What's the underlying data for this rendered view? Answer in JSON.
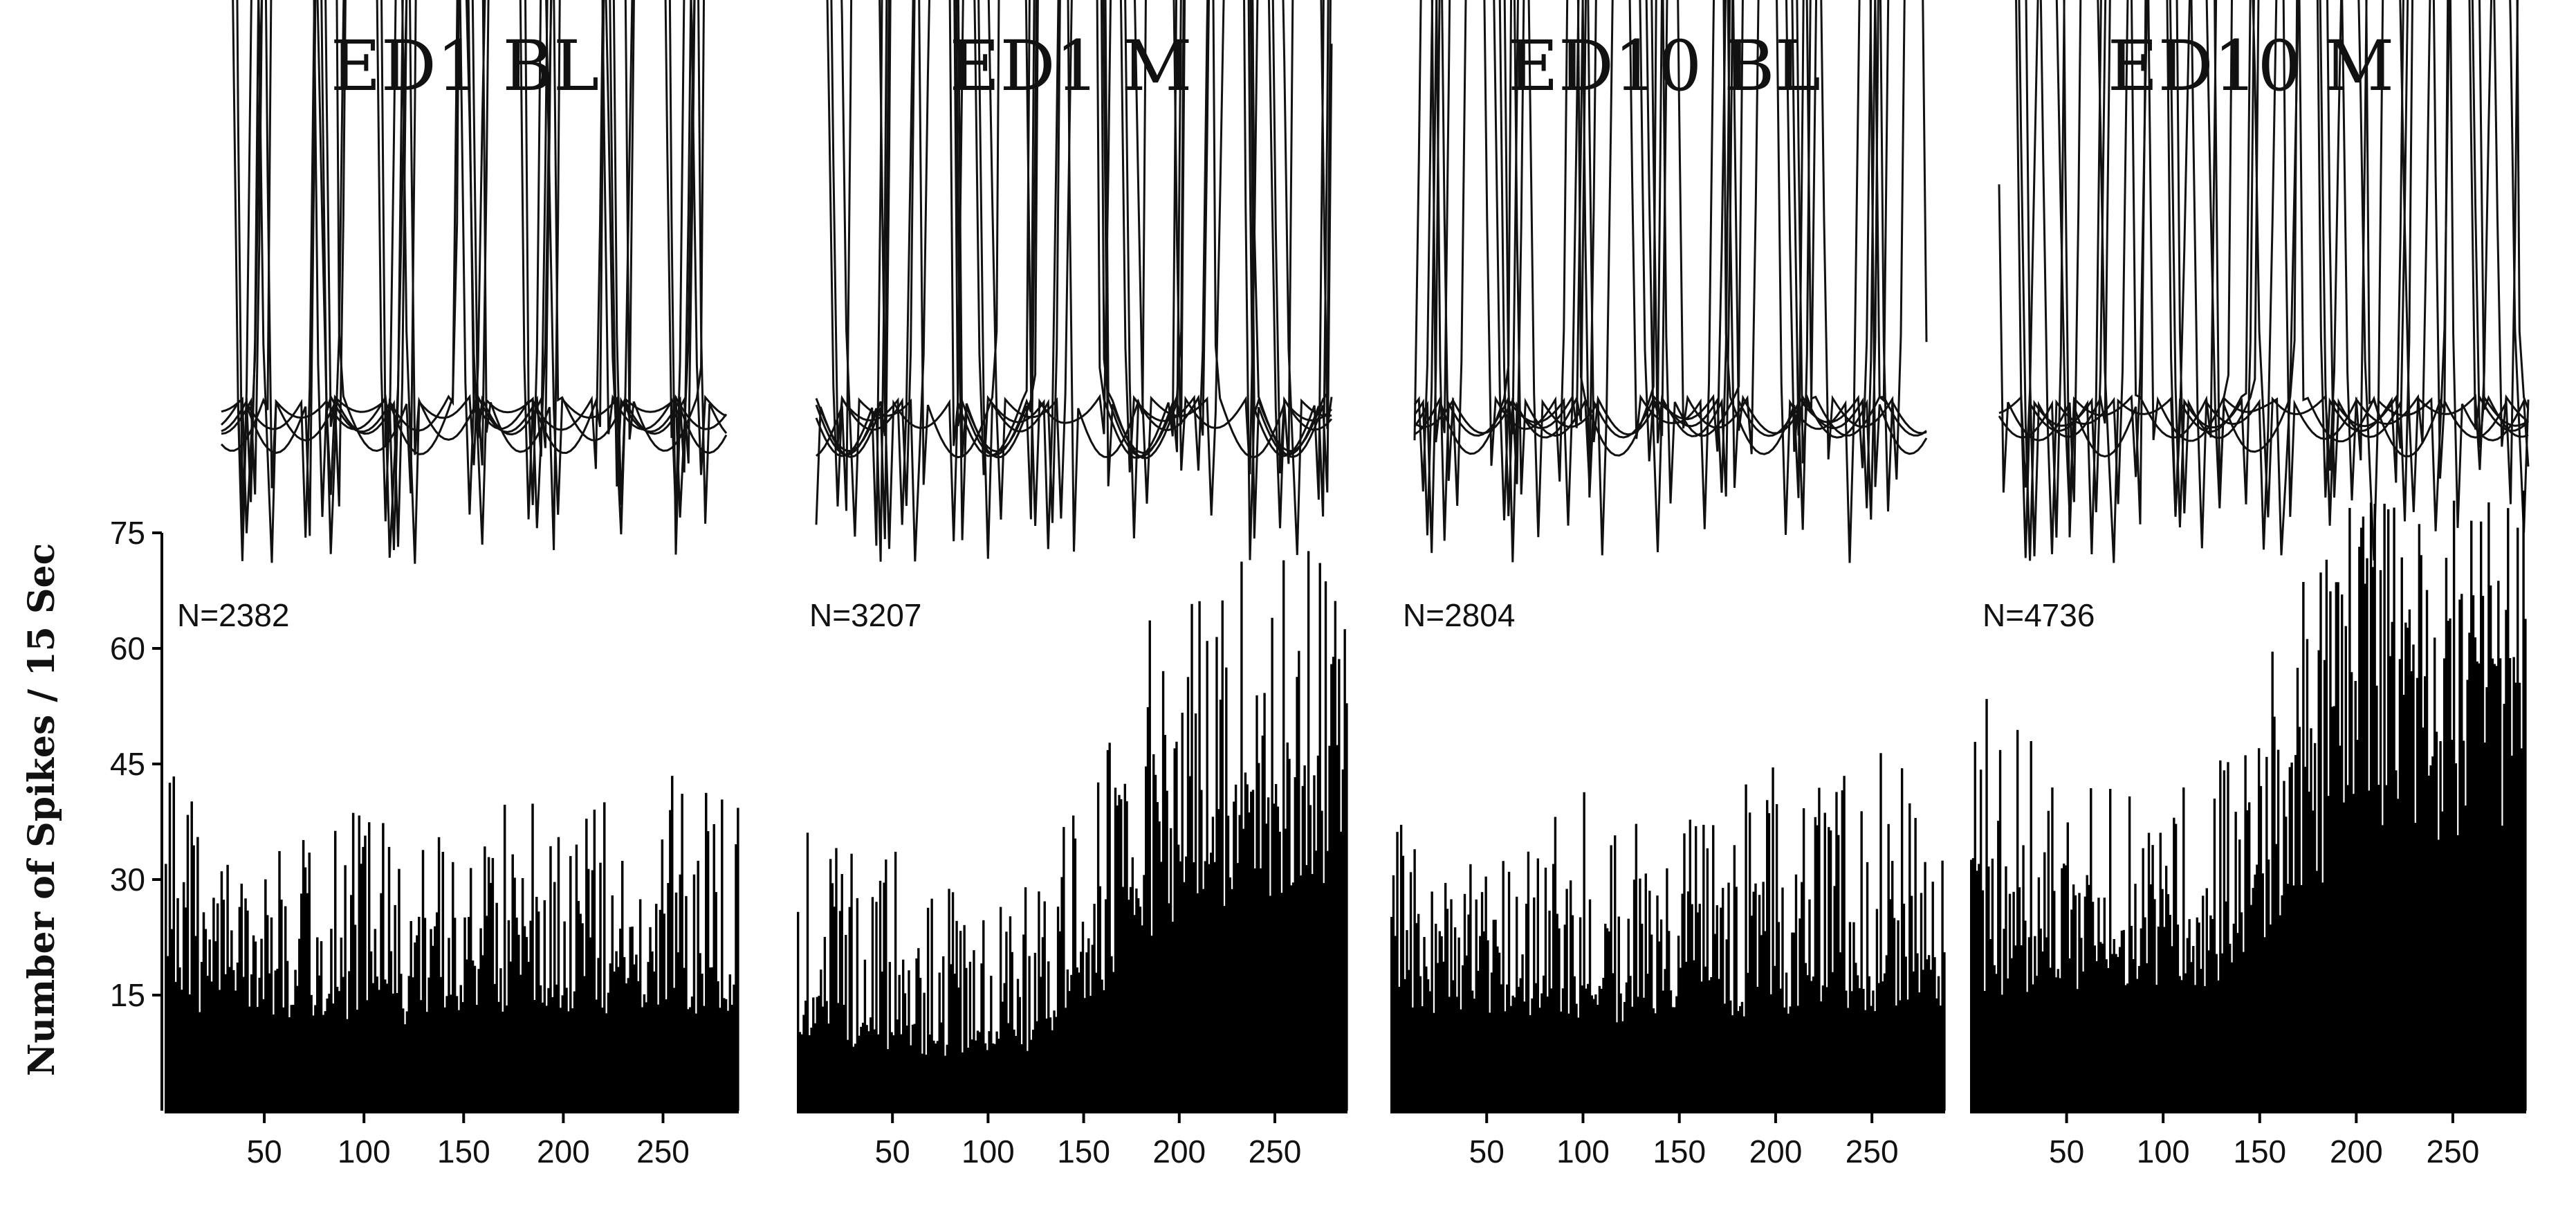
{
  "chart_data": {
    "type": "bar",
    "ylabel": "Number of Spikes / 15 Sec",
    "ylim": [
      0,
      75
    ],
    "yticks": [
      15,
      30,
      45,
      60,
      75
    ],
    "xlim": [
      0,
      288
    ],
    "xticks": [
      50,
      100,
      150,
      200,
      250
    ],
    "bar_color": "#000000",
    "panels": [
      {
        "title": "ED1 BL",
        "n_label": "N=2382",
        "bins": 288,
        "series": {
          "name": "",
          "anchors_x": [
            0,
            25,
            50,
            75,
            100,
            125,
            150,
            175,
            200,
            225,
            250,
            288
          ],
          "baseline": [
            18,
            17,
            17,
            17,
            16,
            16,
            18,
            18,
            17,
            18,
            18,
            18
          ],
          "peaks": [
            45,
            36,
            35,
            38,
            39,
            36,
            38,
            41,
            39,
            41,
            45,
            41
          ]
        }
      },
      {
        "title": "ED1 M",
        "n_label": "N=3207",
        "bins": 288,
        "series": {
          "name": "",
          "anchors_x": [
            0,
            25,
            50,
            75,
            100,
            125,
            140,
            160,
            175,
            200,
            225,
            250,
            288
          ],
          "baseline": [
            14,
            12,
            11,
            10,
            10,
            11,
            16,
            22,
            30,
            35,
            38,
            40,
            42
          ],
          "peaks": [
            40,
            34,
            34,
            29,
            28,
            30,
            39,
            45,
            63,
            68,
            72,
            72,
            74
          ]
        }
      },
      {
        "title": "ED10 BL",
        "n_label": "N=2804",
        "bins": 288,
        "series": {
          "name": "",
          "anchors_x": [
            0,
            25,
            50,
            75,
            100,
            125,
            150,
            175,
            200,
            225,
            250,
            288
          ],
          "baseline": [
            17,
            17,
            16,
            16,
            15,
            16,
            17,
            17,
            17,
            18,
            18,
            18
          ],
          "peaks": [
            38,
            34,
            33,
            35,
            44,
            39,
            41,
            43,
            45,
            42,
            47,
            43
          ]
        }
      },
      {
        "title": "ED10 M",
        "n_label": "N=4736",
        "bins": 288,
        "series": {
          "name": "",
          "anchors_x": [
            0,
            25,
            50,
            75,
            100,
            125,
            150,
            175,
            200,
            225,
            250,
            288
          ],
          "baseline": [
            20,
            22,
            22,
            22,
            22,
            23,
            30,
            40,
            48,
            50,
            50,
            52
          ],
          "peaks": [
            59,
            50,
            42,
            42,
            40,
            45,
            60,
            70,
            80,
            80,
            80,
            82
          ]
        }
      }
    ]
  }
}
